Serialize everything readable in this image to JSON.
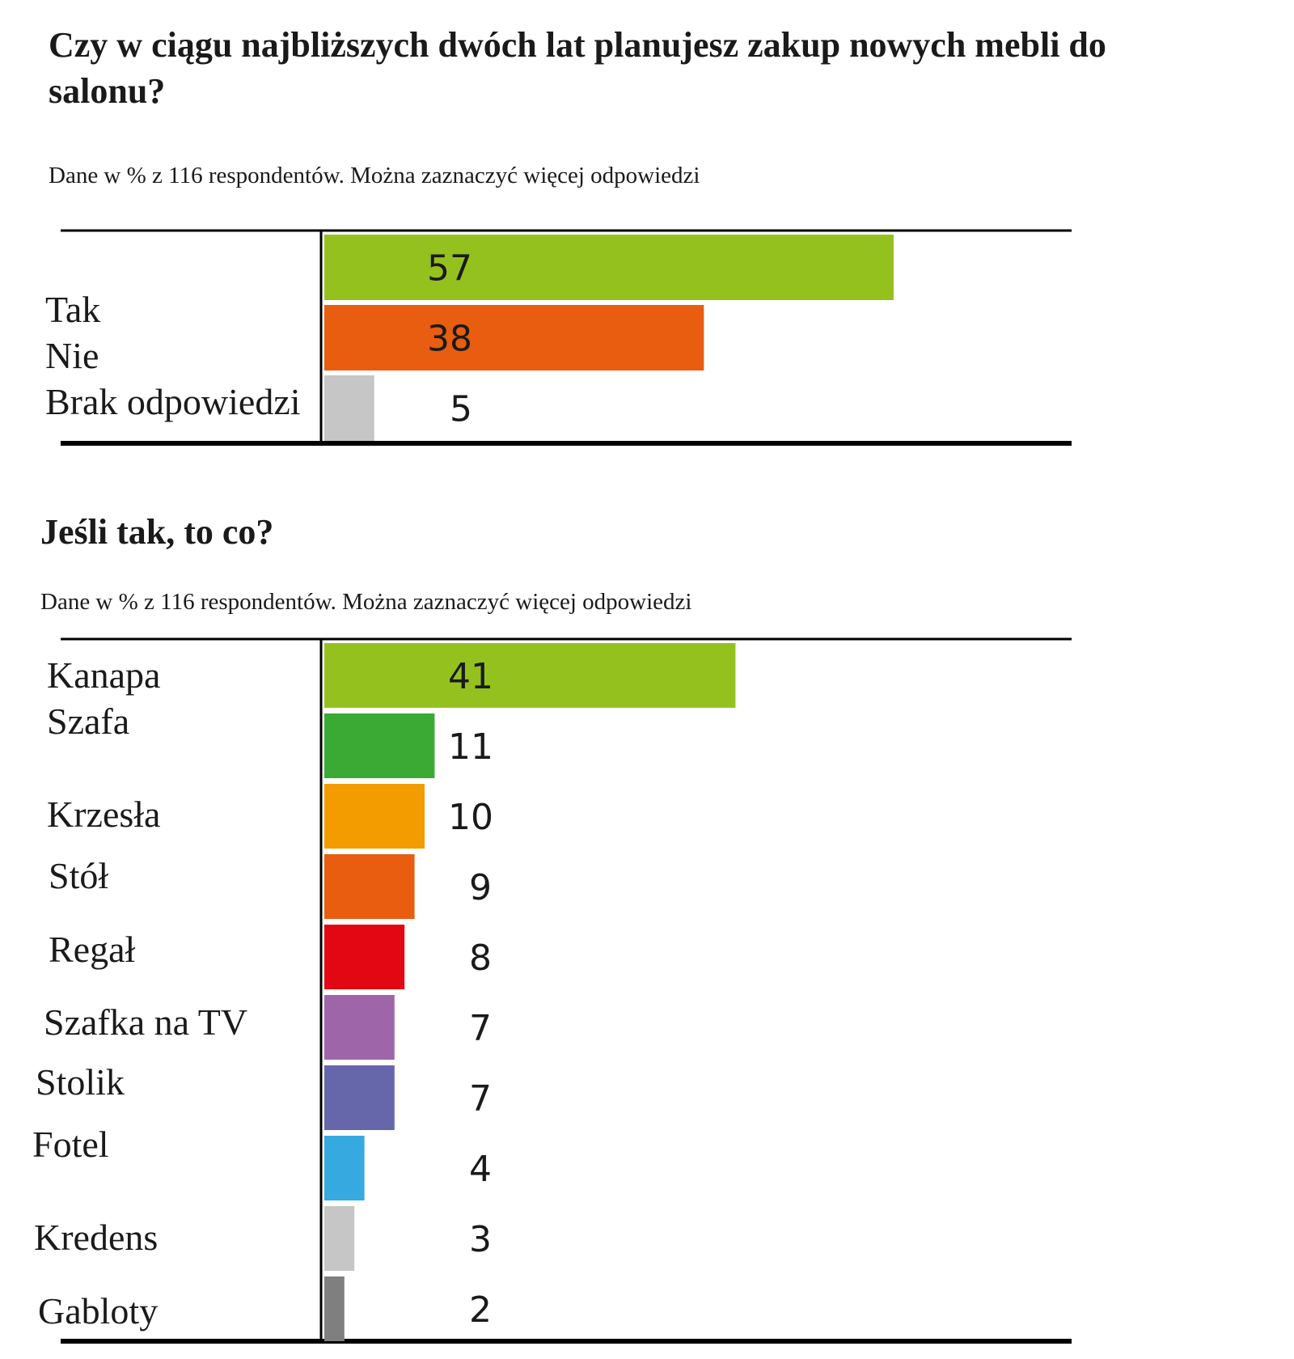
{
  "chart_data": [
    {
      "type": "bar",
      "orientation": "horizontal",
      "title": "Czy w ciągu najbliższych dwóch lat planujesz zakup nowych mebli do salonu?",
      "subtitle": "Dane w % z 116 respondentów. Można zaznaczyć więcej odpowiedzi",
      "categories": [
        "Tak",
        "Nie",
        "Brak odpowiedzi"
      ],
      "values": [
        57,
        38,
        5
      ],
      "colors": [
        "#95c11f",
        "#e85d0f",
        "#c6c6c6"
      ],
      "xlim": [
        0,
        100
      ],
      "grid": false
    },
    {
      "type": "bar",
      "orientation": "horizontal",
      "title": "Jeśli tak, to co?",
      "subtitle": "Dane w % z 116 respondentów. Można zaznaczyć więcej odpowiedzi",
      "categories": [
        "Kanapa",
        "Szafa",
        "Krzesła",
        "Stół",
        "Regał",
        "Szafka na TV",
        "Stolik",
        "Fotel",
        "Kredens",
        "Gabloty"
      ],
      "values": [
        41,
        11,
        10,
        9,
        8,
        7,
        7,
        4,
        3,
        2
      ],
      "colors": [
        "#95c11f",
        "#3aaa35",
        "#f39c00",
        "#e85d0f",
        "#e30613",
        "#9e65a9",
        "#6667ab",
        "#36a9e1",
        "#c6c6c6",
        "#7f7f7f"
      ],
      "xlim": [
        0,
        100
      ],
      "grid": false
    }
  ]
}
